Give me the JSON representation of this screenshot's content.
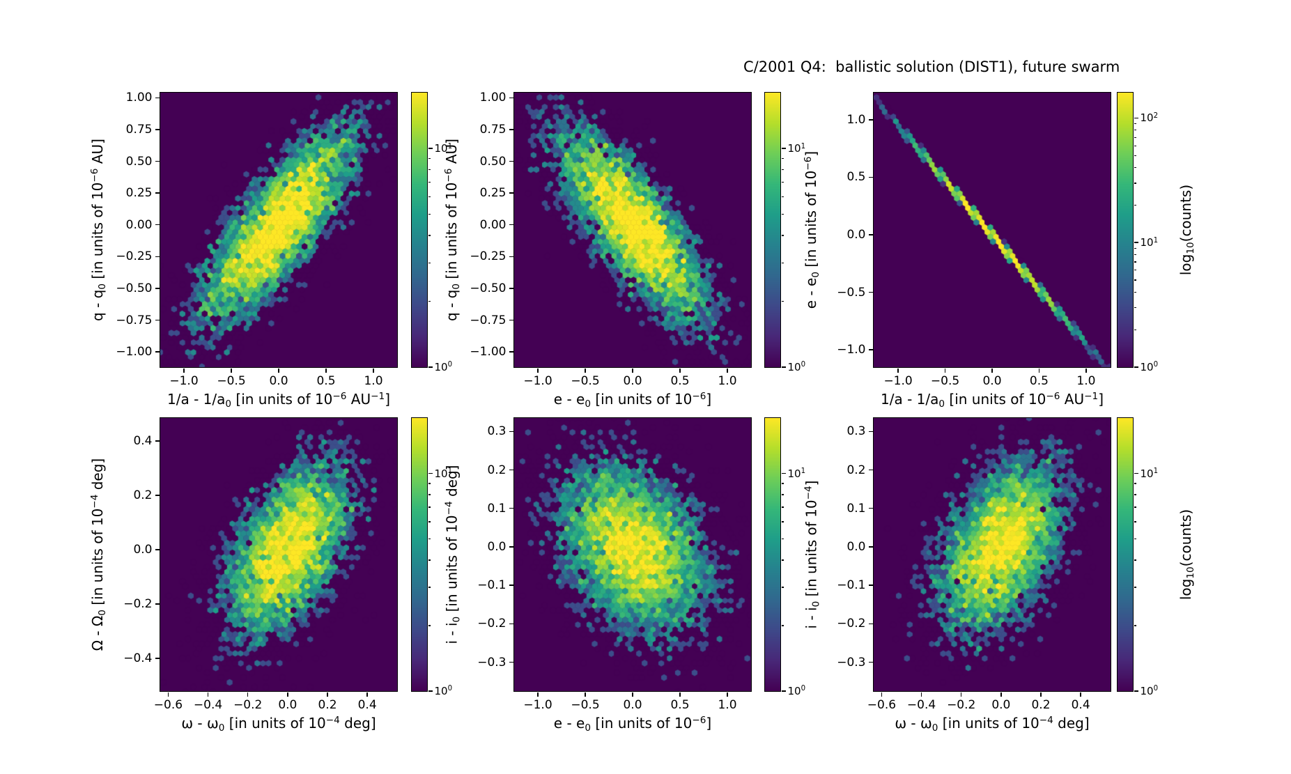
{
  "title": "C/2001 Q4:  ballistic solution (DIST1), future swarm",
  "colors": {
    "background": "#ffffff",
    "axis": "#000000",
    "hexbin_zero_count": "#440154",
    "viridis": [
      "#440154",
      "#482878",
      "#3e4989",
      "#31688e",
      "#26828e",
      "#1f9e89",
      "#35b779",
      "#6ece58",
      "#b5de2b",
      "#fde725"
    ]
  },
  "chart_data": {
    "type": "heatmap",
    "subtype": "hexbin-grid",
    "title": "C/2001 Q4:  ballistic solution (DIST1), future swarm",
    "grid": {
      "rows": 2,
      "cols": 3
    },
    "color_scale": "log10(counts)",
    "panels": [
      {
        "id": "q-vs-inv-a",
        "xlabel": "1/a - 1/a_{0} [in units of 10^{−6} AU^{−1}]",
        "ylabel": "q - q_{0} [in units of 10^{−6} AU]",
        "xlim": [
          -1.25,
          1.25
        ],
        "ylim": [
          -1.12,
          1.04
        ],
        "xticks": {
          "values": [
            -1.0,
            -0.5,
            0.0,
            0.5,
            1.0
          ],
          "labels": [
            "−1.0",
            "−0.5",
            "0.0",
            "0.5",
            "1.0"
          ]
        },
        "yticks": {
          "values": [
            1.0,
            0.75,
            0.5,
            0.25,
            0.0,
            -0.25,
            -0.5,
            -0.75,
            -1.0
          ],
          "labels": [
            "1.00",
            "0.75",
            "0.50",
            "0.25",
            "0.00",
            "−0.25",
            "−0.50",
            "−0.75",
            "−1.00"
          ]
        },
        "distribution": {
          "kind": "gaussian",
          "n": 6500,
          "center": [
            0,
            0
          ],
          "sigma": [
            0.42,
            0.4
          ],
          "rho": 0.8,
          "seed": 11
        },
        "colorbar": {
          "vmax": 18,
          "tick_values": [
            10,
            1
          ],
          "tick_labels": [
            "10^{1}",
            "10^{0}"
          ],
          "label": null
        }
      },
      {
        "id": "q-vs-e",
        "xlabel": "e - e_{0} [in units of 10^{−6}]",
        "ylabel": "q - q_{0} [in units of 10^{−6} AU]",
        "xlim": [
          -1.25,
          1.25
        ],
        "ylim": [
          -1.12,
          1.04
        ],
        "xticks": {
          "values": [
            -1.0,
            -0.5,
            0.0,
            0.5,
            1.0
          ],
          "labels": [
            "−1.0",
            "−0.5",
            "0.0",
            "0.5",
            "1.0"
          ]
        },
        "yticks": {
          "values": [
            1.0,
            0.75,
            0.5,
            0.25,
            0.0,
            -0.25,
            -0.5,
            -0.75,
            -1.0
          ],
          "labels": [
            "1.00",
            "0.75",
            "0.50",
            "0.25",
            "0.00",
            "−0.25",
            "−0.50",
            "−0.75",
            "−1.00"
          ]
        },
        "distribution": {
          "kind": "gaussian",
          "n": 6500,
          "center": [
            0,
            0
          ],
          "sigma": [
            0.42,
            0.4
          ],
          "rho": -0.78,
          "seed": 22
        },
        "colorbar": {
          "vmax": 18,
          "tick_values": [
            10,
            1
          ],
          "tick_labels": [
            "10^{1}",
            "10^{0}"
          ],
          "label": null
        }
      },
      {
        "id": "e-vs-inv-a",
        "xlabel": "1/a - 1/a_{0} [in units of 10^{−6} AU^{−1}]",
        "ylabel": "e - e_{0} [in units of 10^{−6}]",
        "xlim": [
          -1.26,
          1.26
        ],
        "ylim": [
          -1.15,
          1.235
        ],
        "xticks": {
          "values": [
            -1.0,
            -0.5,
            0.0,
            0.5,
            1.0
          ],
          "labels": [
            "−1.0",
            "−0.5",
            "0.0",
            "0.5",
            "1.0"
          ]
        },
        "yticks": {
          "values": [
            1.0,
            0.5,
            0.0,
            -0.5,
            -1.0
          ],
          "labels": [
            "1.0",
            "0.5",
            "0.0",
            "−0.5",
            "−1.0"
          ]
        },
        "distribution": {
          "kind": "line",
          "n": 5000,
          "center": [
            0,
            0
          ],
          "sigma_x": 0.42,
          "slope": -0.95,
          "noise": 0.008,
          "seed": 33
        },
        "colorbar": {
          "vmax": 160,
          "tick_values": [
            100,
            10,
            1
          ],
          "tick_labels": [
            "10^{2}",
            "10^{1}",
            "10^{0}"
          ],
          "label": "log_{10}(counts)"
        }
      },
      {
        "id": "Omega-vs-omega",
        "xlabel": "ω - ω_{0} [in units of 10^{−4} deg]",
        "ylabel": "Ω - Ω_{0} [in units of 10^{−4} deg]",
        "xlim": [
          -0.64,
          0.55
        ],
        "ylim": [
          -0.52,
          0.485
        ],
        "xticks": {
          "values": [
            -0.6,
            -0.4,
            -0.2,
            0.0,
            0.2,
            0.4
          ],
          "labels": [
            "−0.6",
            "−0.4",
            "−0.2",
            "0.0",
            "0.2",
            "0.4"
          ]
        },
        "yticks": {
          "values": [
            0.4,
            0.2,
            0.0,
            -0.2,
            -0.4
          ],
          "labels": [
            "0.4",
            "0.2",
            "0.0",
            "−0.2",
            "−0.4"
          ]
        },
        "distribution": {
          "kind": "gaussian",
          "n": 6000,
          "center": [
            0,
            0
          ],
          "sigma": [
            0.165,
            0.165
          ],
          "rho": 0.5,
          "seed": 44
        },
        "colorbar": {
          "vmax": 18,
          "tick_values": [
            10,
            1
          ],
          "tick_labels": [
            "10^{1}",
            "10^{0}"
          ],
          "label": null
        }
      },
      {
        "id": "i-vs-e",
        "xlabel": "e - e_{0} [in units of 10^{−6}]",
        "ylabel": "i - i_{0} [in units of 10^{−4} deg]",
        "xlim": [
          -1.25,
          1.25
        ],
        "ylim": [
          -0.375,
          0.335
        ],
        "xticks": {
          "values": [
            -1.0,
            -0.5,
            0.0,
            0.5,
            1.0
          ],
          "labels": [
            "−1.0",
            "−0.5",
            "0.0",
            "0.5",
            "1.0"
          ]
        },
        "yticks": {
          "values": [
            0.3,
            0.2,
            0.1,
            0.0,
            -0.1,
            -0.2,
            -0.3
          ],
          "labels": [
            "0.3",
            "0.2",
            "0.1",
            "0.0",
            "−0.1",
            "−0.2",
            "−0.3"
          ]
        },
        "distribution": {
          "kind": "gaussian",
          "n": 7000,
          "center": [
            0,
            0
          ],
          "sigma": [
            0.42,
            0.115
          ],
          "rho": -0.35,
          "seed": 55
        },
        "colorbar": {
          "vmax": 18,
          "tick_values": [
            10,
            1
          ],
          "tick_labels": [
            "10^{1}",
            "10^{0}"
          ],
          "label": null
        }
      },
      {
        "id": "i-vs-omega",
        "xlabel": "ω - ω_{0} [in units of 10^{−4} deg]",
        "ylabel": "i - i_{0} [in units of 10^{−4}]",
        "xlim": [
          -0.64,
          0.55
        ],
        "ylim": [
          -0.375,
          0.335
        ],
        "xticks": {
          "values": [
            -0.6,
            -0.4,
            -0.2,
            0.0,
            0.2,
            0.4
          ],
          "labels": [
            "−0.6",
            "−0.4",
            "−0.2",
            "0.0",
            "0.2",
            "0.4"
          ]
        },
        "yticks": {
          "values": [
            0.3,
            0.2,
            0.1,
            0.0,
            -0.1,
            -0.2,
            -0.3
          ],
          "labels": [
            "0.3",
            "0.2",
            "0.1",
            "0.0",
            "−0.1",
            "−0.2",
            "−0.3"
          ]
        },
        "distribution": {
          "kind": "gaussian",
          "n": 6000,
          "center": [
            0,
            0
          ],
          "sigma": [
            0.165,
            0.115
          ],
          "rho": 0.45,
          "seed": 66
        },
        "colorbar": {
          "vmax": 18,
          "tick_values": [
            10,
            1
          ],
          "tick_labels": [
            "10^{1}",
            "10^{0}"
          ],
          "label": "log_{10}(counts)"
        }
      }
    ]
  }
}
